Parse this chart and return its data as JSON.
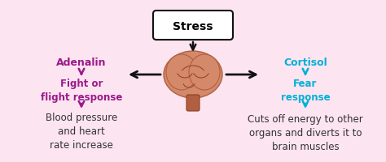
{
  "background_color": "#fce4f0",
  "title": "Stress",
  "title_box_color": "white",
  "title_box_edge": "#111111",
  "adenalin_label": "Adenalin",
  "adenalin_color": "#9b1a8a",
  "fight_label": "Fight or\nflight response",
  "blood_label": "Blood pressure\nand heart\nrate increase",
  "cortisol_label": "Cortisol",
  "cortisol_color": "#00b0d8",
  "fear_label": "Fear\nresponse",
  "cuts_label": "Cuts off energy to other\norgans and diverts it to\nbrain muscles",
  "arrow_color": "#111111",
  "magenta_arrow": "#9b1a8a",
  "cyan_arrow": "#00b0d8",
  "dark_text": "#333333",
  "brain_fill": "#d4896a",
  "brain_stem": "#b06040"
}
